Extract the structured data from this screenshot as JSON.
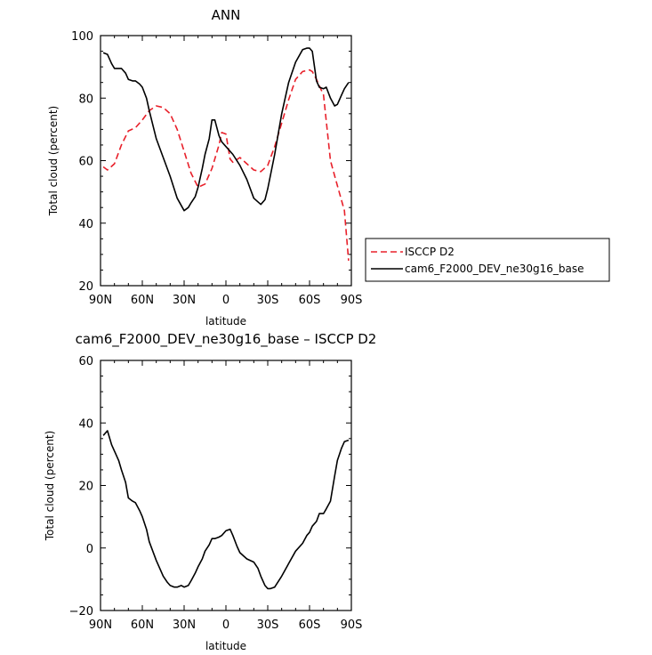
{
  "chart_data": [
    {
      "type": "line",
      "title": "ANN",
      "xlabel": "latitude",
      "ylabel": "Total cloud (percent)",
      "xlim": [
        90,
        -90
      ],
      "ylim": [
        20,
        100
      ],
      "x_tick_values": [
        90,
        60,
        30,
        0,
        -30,
        -60,
        -90
      ],
      "x_tick_labels": [
        "90N",
        "60N",
        "30N",
        "0",
        "30S",
        "60S",
        "90S"
      ],
      "y_ticks": [
        20,
        40,
        60,
        80,
        100
      ],
      "legend": "right",
      "series": [
        {
          "name": "ISCCP D2",
          "color": "#e8202a",
          "dash": "dashed",
          "x": [
            88,
            85,
            80,
            75,
            70,
            65,
            60,
            55,
            50,
            45,
            40,
            35,
            30,
            25,
            20,
            15,
            10,
            5,
            3,
            0,
            -3,
            -5,
            -10,
            -15,
            -20,
            -25,
            -30,
            -35,
            -40,
            -45,
            -50,
            -55,
            -60,
            -62,
            -65,
            -70,
            -75,
            -80,
            -85,
            -88
          ],
          "y": [
            58,
            57,
            59,
            65,
            69.5,
            70.5,
            73,
            76,
            77.5,
            77,
            75,
            70,
            63,
            56,
            51.5,
            52.5,
            57.5,
            65,
            69,
            68.5,
            60.5,
            59.5,
            61,
            59,
            57,
            56.5,
            58.5,
            64.5,
            72,
            79.5,
            86,
            88.5,
            89,
            88.5,
            86,
            81,
            60,
            52,
            44,
            28
          ]
        },
        {
          "name": "cam6_F2000_DEV_ne30g16_base",
          "color": "#000000",
          "dash": "solid",
          "x": [
            88,
            85,
            82,
            80,
            77,
            75,
            72,
            70,
            67,
            65,
            62,
            60,
            57,
            55,
            50,
            45,
            40,
            35,
            30,
            27,
            25,
            22,
            20,
            17,
            15,
            12,
            10,
            8,
            5,
            3,
            0,
            -5,
            -10,
            -15,
            -20,
            -25,
            -28,
            -30,
            -35,
            -40,
            -45,
            -50,
            -55,
            -58,
            -60,
            -62,
            -65,
            -67,
            -70,
            -72,
            -75,
            -78,
            -80,
            -83,
            -85,
            -88
          ],
          "y": [
            94.5,
            94,
            91,
            89.5,
            89.5,
            89.5,
            88,
            86,
            85.5,
            85.5,
            84.5,
            83.5,
            80,
            76,
            67,
            61,
            55,
            48,
            44,
            45,
            46.5,
            48.5,
            51.5,
            57.5,
            62,
            67,
            73,
            73,
            68,
            66,
            64.5,
            62,
            58.5,
            54,
            48,
            46,
            47.5,
            51,
            62,
            75,
            85,
            91.5,
            95.5,
            96,
            96,
            95,
            85.5,
            83.5,
            83,
            83.5,
            80,
            77.5,
            78,
            81,
            83,
            85
          ]
        }
      ]
    },
    {
      "type": "line",
      "title": "cam6_F2000_DEV_ne30g16_base – ISCCP D2",
      "xlabel": "latitude",
      "ylabel": "Total cloud (percent)",
      "xlim": [
        90,
        -90
      ],
      "ylim": [
        -20,
        60
      ],
      "x_tick_values": [
        90,
        60,
        30,
        0,
        -30,
        -60,
        -90
      ],
      "x_tick_labels": [
        "90N",
        "60N",
        "30N",
        "0",
        "30S",
        "60S",
        "90S"
      ],
      "y_ticks": [
        -20,
        0,
        20,
        40,
        60
      ],
      "series": [
        {
          "color": "#000000",
          "dash": "solid",
          "x": [
            88,
            85,
            82,
            80,
            77,
            75,
            72,
            70,
            67,
            65,
            62,
            60,
            57,
            55,
            50,
            45,
            42,
            40,
            37,
            35,
            32,
            30,
            27,
            25,
            22,
            20,
            17,
            15,
            12,
            10,
            8,
            5,
            3,
            0,
            -3,
            -5,
            -8,
            -10,
            -15,
            -20,
            -23,
            -25,
            -28,
            -30,
            -32,
            -35,
            -40,
            -45,
            -50,
            -55,
            -58,
            -60,
            -62,
            -65,
            -67,
            -70,
            -72,
            -75,
            -78,
            -80,
            -83,
            -85,
            -88
          ],
          "y": [
            36,
            37.5,
            33,
            31,
            28,
            25,
            21,
            16,
            15,
            14.5,
            12,
            10,
            6,
            2,
            -4,
            -9,
            -11,
            -12,
            -12.5,
            -12.5,
            -12,
            -12.5,
            -12,
            -10.5,
            -8,
            -6,
            -3.5,
            -1,
            1,
            3,
            3,
            3.5,
            4,
            5.5,
            6,
            4,
            0.5,
            -1.5,
            -3.5,
            -4.5,
            -6.5,
            -9,
            -12,
            -13,
            -13,
            -12.5,
            -9,
            -5,
            -1,
            1.5,
            4,
            5,
            7,
            8.5,
            11,
            11,
            12.5,
            15,
            23,
            28,
            32,
            34,
            34.5
          ]
        }
      ]
    }
  ]
}
